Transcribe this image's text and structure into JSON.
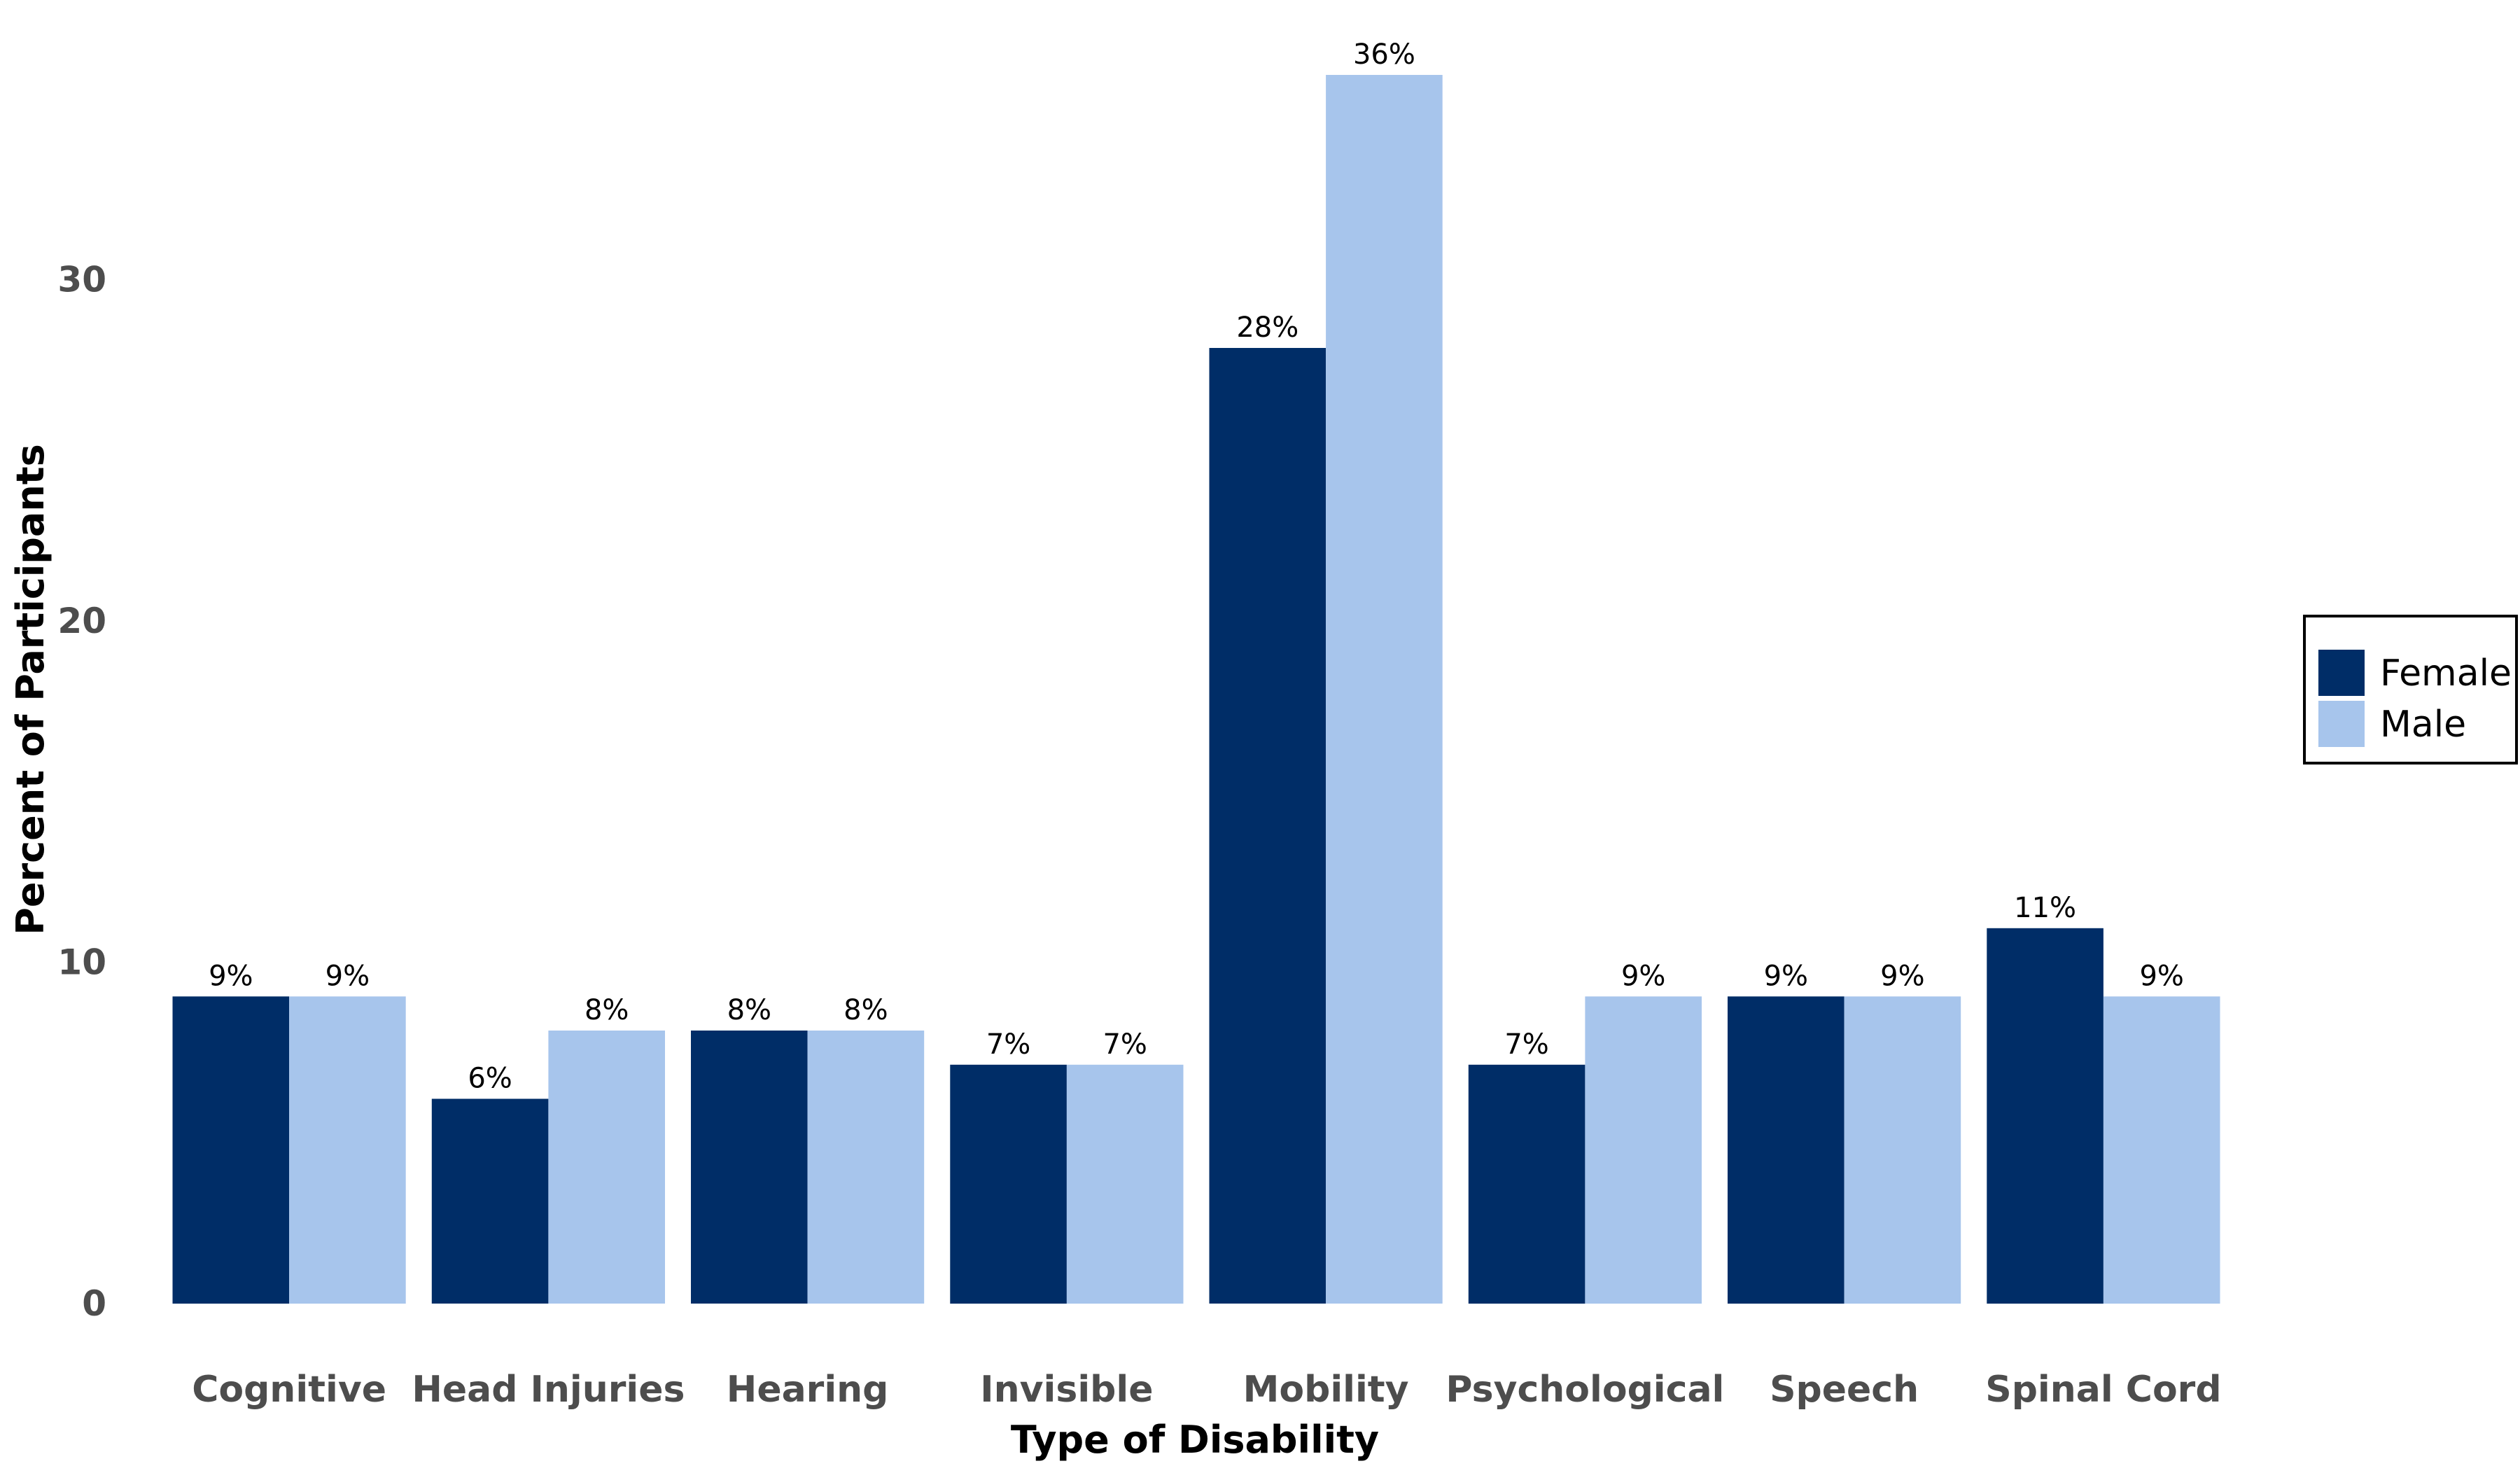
{
  "chart_data": {
    "type": "bar",
    "categories": [
      "Cognitive",
      "Head Injuries",
      "Hearing",
      "Invisible",
      "Mobility",
      "Psychological",
      "Speech",
      "Spinal Cord"
    ],
    "series": [
      {
        "name": "Female",
        "color": "#002d67",
        "values": [
          9,
          6,
          8,
          7,
          28,
          7,
          9,
          11
        ],
        "labels": [
          "9%",
          "6%",
          "8%",
          "7%",
          "28%",
          "7%",
          "9%",
          "11%"
        ]
      },
      {
        "name": "Male",
        "color": "#a7c5ec",
        "values": [
          9,
          8,
          8,
          7,
          36,
          9,
          9,
          9
        ],
        "labels": [
          "9%",
          "8%",
          "8%",
          "7%",
          "36%",
          "9%",
          "9%",
          "9%"
        ]
      }
    ],
    "xlabel": "Type of Disability",
    "ylabel": "Percent of Participants",
    "yticks": [
      0,
      10,
      20,
      30
    ],
    "ytick_labels": [
      "0",
      "10",
      "20",
      "30"
    ],
    "ylim": [
      0,
      36
    ],
    "grid": false,
    "legend_position": "right"
  }
}
